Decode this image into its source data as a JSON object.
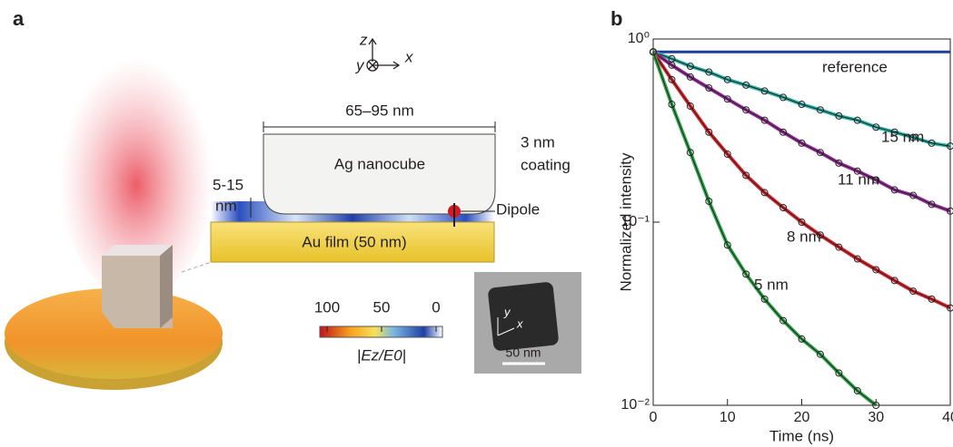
{
  "panel_a": {
    "label": "a",
    "axes": {
      "z": "z",
      "y": "y",
      "x": "x"
    },
    "width_label": "65–95 nm",
    "cube_label": "Ag nanocube",
    "coating_top": "3 nm",
    "coating_bottom": "coating",
    "gap_top": "5-15",
    "gap_bottom": "nm",
    "dipole_label": "Dipole",
    "film_label": "Au film (50 nm)",
    "colorbar": {
      "ticks": [
        100,
        50,
        0
      ],
      "label": "|Ez/E0|"
    },
    "inset": {
      "y": "y",
      "x": "x",
      "scale": "50 nm"
    }
  },
  "chart_data": {
    "type": "line",
    "panel_label": "b",
    "x_label": "Time (ns)",
    "y_label": "Normalized intensity",
    "log_y": true,
    "xlim": [
      0,
      40
    ],
    "ylim": [
      0.01,
      1
    ],
    "xticks": [
      0,
      10,
      20,
      30,
      40
    ],
    "yticks": [
      {
        "value": 1,
        "label": "10⁰"
      },
      {
        "value": 0.1,
        "label": "10⁻¹"
      },
      {
        "value": 0.01,
        "label": "10⁻²"
      }
    ],
    "x": [
      0,
      2.5,
      5,
      7.5,
      10,
      12.5,
      15,
      17.5,
      20,
      22.5,
      25,
      27.5,
      30,
      32.5,
      35,
      37.5,
      40
    ],
    "series": [
      {
        "name": "reference",
        "color": "#1f3c9a",
        "markers": false,
        "values": [
          0.85,
          0.85,
          0.85,
          0.85,
          0.85,
          0.85,
          0.85,
          0.85,
          0.85,
          0.85,
          0.85,
          0.85,
          0.85,
          0.85,
          0.85,
          0.85,
          0.85
        ]
      },
      {
        "name": "15 nm",
        "color": "#2ab3a8",
        "markers": true,
        "values": [
          0.85,
          0.78,
          0.71,
          0.66,
          0.6,
          0.56,
          0.52,
          0.48,
          0.44,
          0.41,
          0.38,
          0.36,
          0.33,
          0.31,
          0.29,
          0.27,
          0.26
        ]
      },
      {
        "name": "11 nm",
        "color": "#9a2f9e",
        "markers": true,
        "values": [
          0.85,
          0.72,
          0.62,
          0.54,
          0.47,
          0.41,
          0.36,
          0.31,
          0.27,
          0.24,
          0.21,
          0.19,
          0.17,
          0.15,
          0.14,
          0.125,
          0.115
        ]
      },
      {
        "name": "8 nm",
        "color": "#e0262e",
        "markers": true,
        "values": [
          0.85,
          0.6,
          0.43,
          0.31,
          0.235,
          0.18,
          0.145,
          0.12,
          0.1,
          0.085,
          0.073,
          0.063,
          0.055,
          0.048,
          0.042,
          0.038,
          0.034
        ]
      },
      {
        "name": "5 nm",
        "color": "#2ea84a",
        "markers": true,
        "values": [
          0.85,
          0.44,
          0.24,
          0.13,
          0.075,
          0.052,
          0.038,
          0.029,
          0.023,
          0.019,
          0.015,
          0.012,
          0.01,
          null,
          null,
          null,
          null
        ]
      }
    ]
  }
}
